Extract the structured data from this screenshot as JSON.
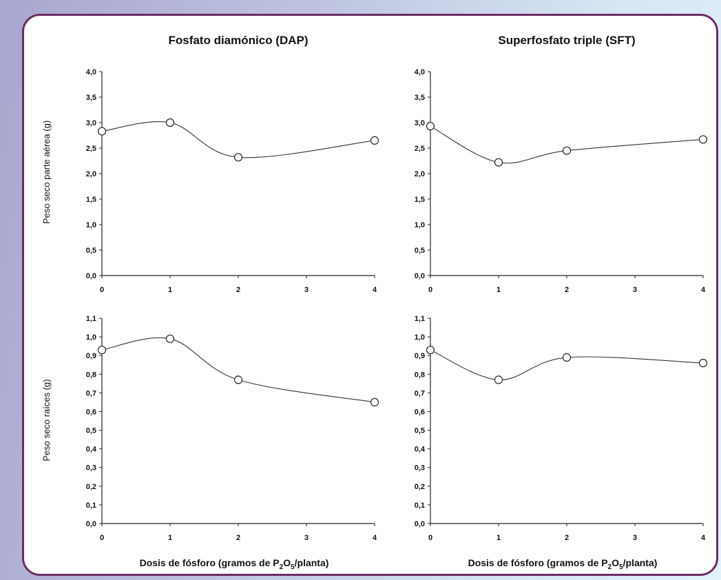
{
  "chart_data": [
    {
      "type": "line",
      "title": "Fosfato diamónico (DAP)",
      "ylabel": "Peso seco parte aérea (g)",
      "xlabel": "",
      "x": [
        0,
        1,
        2,
        4
      ],
      "y": [
        2.83,
        3.0,
        2.32,
        2.65
      ],
      "xlim": [
        0,
        4
      ],
      "ylim": [
        0,
        4
      ],
      "x_ticks": [
        "0",
        "1",
        "2",
        "3",
        "4"
      ],
      "y_ticks": [
        "0,0",
        "0,5",
        "1,0",
        "1,5",
        "2,0",
        "2,5",
        "3,0",
        "3,5",
        "4,0"
      ],
      "grid": false,
      "marker": "open-circle"
    },
    {
      "type": "line",
      "title": "Superfosfato triple (SFT)",
      "ylabel": "",
      "xlabel": "",
      "x": [
        0,
        1,
        2,
        4
      ],
      "y": [
        2.93,
        2.22,
        2.45,
        2.67
      ],
      "xlim": [
        0,
        4
      ],
      "ylim": [
        0,
        4
      ],
      "x_ticks": [
        "0",
        "1",
        "2",
        "3",
        "4"
      ],
      "y_ticks": [
        "0,0",
        "0,5",
        "1,0",
        "1,5",
        "2,0",
        "2,5",
        "3,0",
        "3,5",
        "4,0"
      ],
      "grid": false,
      "marker": "open-circle"
    },
    {
      "type": "line",
      "title": "",
      "ylabel": "Peso seco raíces (g)",
      "xlabel": "Dosis de fósforo (gramos de P2O5/planta)",
      "x": [
        0,
        1,
        2,
        4
      ],
      "y": [
        0.93,
        0.99,
        0.77,
        0.65
      ],
      "xlim": [
        0,
        4
      ],
      "ylim": [
        0,
        1.1
      ],
      "x_ticks": [
        "0",
        "1",
        "2",
        "3",
        "4"
      ],
      "y_ticks": [
        "0,0",
        "0,1",
        "0,2",
        "0,3",
        "0,4",
        "0,5",
        "0,6",
        "0,7",
        "0,8",
        "0,9",
        "1,0",
        "1,1"
      ],
      "grid": false,
      "marker": "open-circle"
    },
    {
      "type": "line",
      "title": "",
      "ylabel": "",
      "xlabel": "Dosis de fósforo (gramos de P2O5/planta)",
      "x": [
        0,
        1,
        2,
        4
      ],
      "y": [
        0.93,
        0.77,
        0.89,
        0.86
      ],
      "xlim": [
        0,
        4
      ],
      "ylim": [
        0,
        1.1
      ],
      "x_ticks": [
        "0",
        "1",
        "2",
        "3",
        "4"
      ],
      "y_ticks": [
        "0,0",
        "0,1",
        "0,2",
        "0,3",
        "0,4",
        "0,5",
        "0,6",
        "0,7",
        "0,8",
        "0,9",
        "1,0",
        "1,1"
      ],
      "grid": false,
      "marker": "open-circle"
    }
  ],
  "xlabel_parts": {
    "before": "Dosis de fósforo (gramos de ",
    "p": "P",
    "sub1": "2",
    "o": "O",
    "sub2": "5",
    "after": "/planta)"
  }
}
